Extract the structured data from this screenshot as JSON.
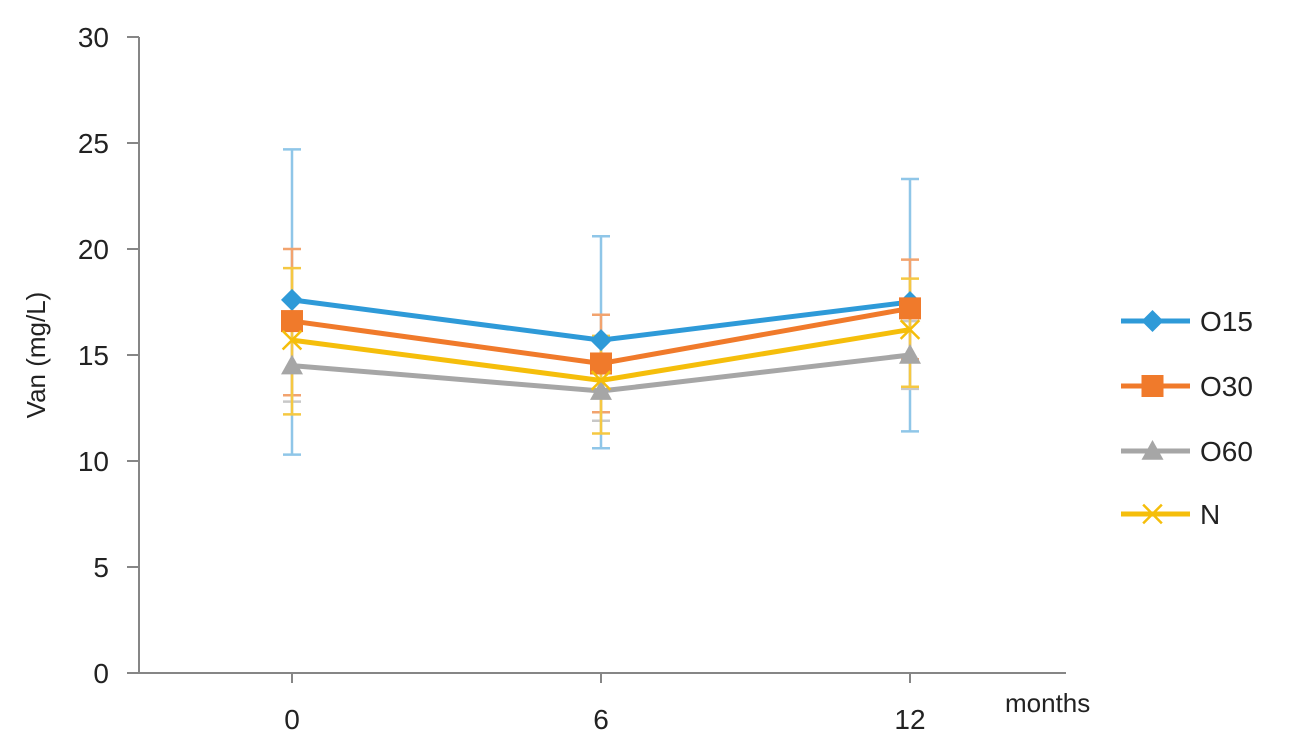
{
  "chart_data": {
    "type": "line",
    "x": [
      0,
      6,
      12
    ],
    "x_tick_labels": [
      "0",
      "6",
      "12"
    ],
    "xlabel": "months",
    "ylabel": "Van (mg/L)",
    "ylim": [
      0,
      30
    ],
    "y_ticks": [
      0,
      5,
      10,
      15,
      20,
      25,
      30
    ],
    "legend_position": "right",
    "grid": false,
    "series": [
      {
        "name": "O15",
        "color": "#2E9AD8",
        "error_color": "#8FC6E8",
        "marker": "diamond",
        "values": [
          17.6,
          15.7,
          17.5
        ],
        "error_low": [
          10.3,
          10.6,
          11.4
        ],
        "error_high": [
          24.7,
          20.6,
          23.3
        ]
      },
      {
        "name": "O30",
        "color": "#F07A2B",
        "error_color": "#F2A36E",
        "marker": "square",
        "values": [
          16.6,
          14.6,
          17.2
        ],
        "error_low": [
          13.1,
          12.3,
          14.8
        ],
        "error_high": [
          20.0,
          16.9,
          19.5
        ]
      },
      {
        "name": "O60",
        "color": "#A6A6A6",
        "error_color": "#C8C8C8",
        "marker": "triangle",
        "values": [
          14.5,
          13.3,
          15.0
        ],
        "error_low": [
          12.8,
          11.9,
          13.4
        ],
        "error_high": [
          16.2,
          14.7,
          16.6
        ]
      },
      {
        "name": "N",
        "color": "#F5BE0B",
        "error_color": "#F5C842",
        "marker": "x",
        "values": [
          15.7,
          13.8,
          16.2
        ],
        "error_low": [
          12.2,
          11.3,
          13.5
        ],
        "error_high": [
          19.1,
          15.9,
          18.6
        ]
      }
    ]
  }
}
